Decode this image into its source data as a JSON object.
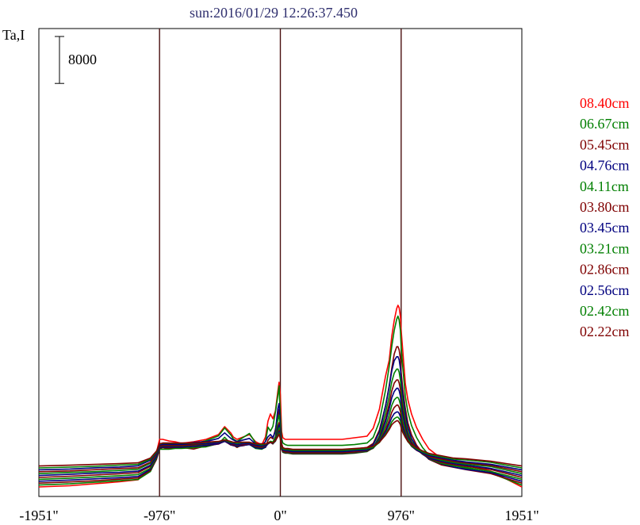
{
  "chart_data": {
    "type": "line",
    "title": "sun:2016/01/29 12:26:37.450",
    "ylabel": "Ta,I",
    "scale_bar_label": "8000",
    "scale_bar_value": 8000,
    "xlim": [
      -1951,
      1951
    ],
    "x_ticks": [
      {
        "value": -1951,
        "label": "-1951\""
      },
      {
        "value": -976,
        "label": "-976\""
      },
      {
        "value": 0,
        "label": "0\""
      },
      {
        "value": 976,
        "label": "976\""
      },
      {
        "value": 1951,
        "label": "1951\""
      }
    ],
    "vertical_lines": [
      -976,
      0,
      976
    ],
    "grid": false,
    "legend_position": "right",
    "x": [
      -1951,
      -1700,
      -1500,
      -1300,
      -1150,
      -1050,
      -1000,
      -976,
      -950,
      -900,
      -850,
      -800,
      -700,
      -600,
      -500,
      -450,
      -400,
      -380,
      -350,
      -300,
      -250,
      -200,
      -150,
      -120,
      -100,
      -80,
      -60,
      -40,
      -20,
      -10,
      0,
      10,
      20,
      40,
      60,
      100,
      200,
      300,
      400,
      500,
      600,
      700,
      750,
      800,
      850,
      880,
      900,
      920,
      940,
      950,
      960,
      970,
      976,
      990,
      1010,
      1030,
      1060,
      1100,
      1150,
      1200,
      1300,
      1400,
      1500,
      1700,
      1951
    ],
    "series": [
      {
        "name": "08.40cm",
        "color": "#ff0000",
        "baseline": 1200,
        "values": [
          0,
          150,
          400,
          650,
          900,
          2400,
          4400,
          6000,
          6000,
          5800,
          5700,
          5500,
          5700,
          6000,
          6600,
          7600,
          6800,
          6300,
          6000,
          6300,
          6600,
          5700,
          5300,
          6300,
          8300,
          9200,
          8600,
          9600,
          12100,
          13200,
          11600,
          7000,
          6200,
          6000,
          6000,
          6000,
          6000,
          6000,
          6000,
          6000,
          6200,
          6400,
          7400,
          9800,
          14000,
          16000,
          19000,
          21000,
          22500,
          22900,
          22600,
          21500,
          19800,
          17000,
          13000,
          11000,
          9200,
          7500,
          6000,
          4800,
          3600,
          3000,
          2700,
          2000,
          0
        ]
      },
      {
        "name": "06.67cm",
        "color": "#007f00",
        "baseline": 1440,
        "values": [
          0,
          150,
          350,
          550,
          700,
          1700,
          3300,
          5000,
          5100,
          5200,
          5200,
          5100,
          5200,
          5600,
          6200,
          7200,
          6300,
          5800,
          5500,
          6000,
          6500,
          5300,
          4900,
          5500,
          7300,
          6800,
          7400,
          9200,
          11300,
          12500,
          8800,
          5900,
          5300,
          5100,
          5000,
          5000,
          5000,
          5000,
          5000,
          5000,
          5100,
          5300,
          6000,
          8000,
          12000,
          15000,
          17500,
          19500,
          20900,
          21300,
          20800,
          19500,
          17500,
          14700,
          11200,
          9200,
          7500,
          6000,
          4700,
          3800,
          2900,
          2500,
          2100,
          1500,
          0
        ]
      },
      {
        "name": "05.45cm",
        "color": "#7f0000",
        "baseline": 1680,
        "values": [
          0,
          150,
          300,
          500,
          650,
          1600,
          3000,
          4300,
          4500,
          4300,
          4400,
          4500,
          4300,
          4700,
          5000,
          5300,
          4800,
          4800,
          4500,
          4900,
          5100,
          4500,
          4300,
          4500,
          5400,
          5800,
          5600,
          6800,
          8500,
          9300,
          7400,
          5000,
          4500,
          4300,
          4300,
          4200,
          4200,
          4200,
          4200,
          4200,
          4300,
          4500,
          5000,
          6700,
          9800,
          12300,
          14500,
          16300,
          17200,
          17200,
          16800,
          15700,
          14000,
          11800,
          9400,
          7600,
          6100,
          4800,
          3800,
          3000,
          2300,
          2000,
          1700,
          1200,
          0
        ]
      },
      {
        "name": "04.76cm",
        "color": "#00007f",
        "baseline": 1920,
        "values": [
          0,
          150,
          300,
          450,
          600,
          1500,
          2900,
          4200,
          4500,
          4500,
          4700,
          4700,
          4900,
          5000,
          5400,
          6100,
          5400,
          5200,
          5000,
          5200,
          5400,
          4700,
          4500,
          5000,
          5600,
          5900,
          5500,
          6300,
          9200,
          9800,
          7000,
          4400,
          4000,
          3900,
          3900,
          3800,
          3800,
          3800,
          3800,
          3800,
          3900,
          4100,
          4600,
          6200,
          9500,
          11900,
          13900,
          15200,
          15700,
          15700,
          15300,
          14200,
          12800,
          10800,
          8500,
          6800,
          5400,
          4300,
          3500,
          2800,
          2200,
          1800,
          1500,
          1100,
          0
        ]
      },
      {
        "name": "04.11cm",
        "color": "#007f00",
        "baseline": 2160,
        "values": [
          0,
          150,
          300,
          450,
          600,
          1400,
          2700,
          3800,
          3800,
          3800,
          3900,
          3900,
          4000,
          4100,
          4500,
          5300,
          4500,
          4300,
          4100,
          4300,
          4400,
          3900,
          3800,
          4100,
          4600,
          4800,
          4700,
          5400,
          7600,
          8100,
          6000,
          3800,
          3400,
          3300,
          3300,
          3200,
          3200,
          3200,
          3200,
          3200,
          3300,
          3500,
          4000,
          5500,
          8400,
          10500,
          12300,
          13400,
          13900,
          13900,
          13500,
          12500,
          11300,
          9500,
          7500,
          6000,
          4800,
          3900,
          3200,
          2600,
          2000,
          1700,
          1500,
          1000,
          0
        ]
      },
      {
        "name": "03.80cm",
        "color": "#7f0000",
        "baseline": 2400,
        "values": [
          0,
          150,
          300,
          450,
          600,
          1400,
          2600,
          3700,
          3800,
          3700,
          3800,
          3800,
          3900,
          4000,
          4200,
          4600,
          4100,
          4000,
          3900,
          4000,
          4200,
          3800,
          3700,
          3900,
          4300,
          4500,
          4300,
          4800,
          6400,
          6900,
          5500,
          3600,
          3200,
          3100,
          3100,
          3000,
          3000,
          3000,
          3000,
          3000,
          3100,
          3300,
          3700,
          5000,
          7400,
          9300,
          10900,
          11900,
          12300,
          12300,
          11900,
          11100,
          10000,
          8400,
          6700,
          5400,
          4400,
          3600,
          2900,
          2400,
          1900,
          1600,
          1400,
          1000,
          0
        ]
      },
      {
        "name": "03.45cm",
        "color": "#00007f",
        "baseline": 2640,
        "values": [
          0,
          150,
          300,
          400,
          550,
          1300,
          2400,
          3500,
          3600,
          3600,
          3600,
          3600,
          3700,
          3800,
          4000,
          4300,
          3900,
          3800,
          3700,
          3800,
          3900,
          3500,
          3400,
          3600,
          4000,
          4200,
          4000,
          4500,
          5900,
          6400,
          5100,
          3300,
          3000,
          2900,
          2900,
          2800,
          2800,
          2800,
          2800,
          2800,
          2900,
          3100,
          3500,
          4600,
          6800,
          8400,
          9800,
          10600,
          11000,
          11000,
          10700,
          10000,
          9000,
          7600,
          6100,
          4900,
          4000,
          3300,
          2700,
          2200,
          1800,
          1500,
          1300,
          900,
          0
        ]
      },
      {
        "name": "03.21cm",
        "color": "#007f00",
        "baseline": 2880,
        "values": [
          0,
          150,
          250,
          400,
          550,
          1300,
          2400,
          3400,
          3500,
          3500,
          3500,
          3500,
          3600,
          3700,
          3900,
          4200,
          3800,
          3700,
          3600,
          3700,
          3800,
          3400,
          3300,
          3500,
          3800,
          4000,
          3800,
          4200,
          5300,
          5800,
          4700,
          3100,
          2800,
          2700,
          2700,
          2600,
          2600,
          2600,
          2600,
          2600,
          2700,
          2900,
          3200,
          4200,
          6000,
          7400,
          8600,
          9300,
          9600,
          9600,
          9300,
          8700,
          7800,
          6600,
          5400,
          4400,
          3600,
          3000,
          2500,
          2100,
          1700,
          1400,
          1200,
          900,
          0
        ]
      },
      {
        "name": "02.86cm",
        "color": "#7f0000",
        "baseline": 3120,
        "values": [
          0,
          100,
          250,
          400,
          500,
          1200,
          2200,
          3200,
          3300,
          3300,
          3300,
          3300,
          3400,
          3500,
          3600,
          3900,
          3500,
          3400,
          3400,
          3400,
          3500,
          3200,
          3100,
          3300,
          3500,
          3700,
          3500,
          3900,
          4800,
          5200,
          4300,
          2900,
          2600,
          2500,
          2500,
          2400,
          2400,
          2400,
          2400,
          2400,
          2500,
          2700,
          3000,
          3800,
          5300,
          6500,
          7500,
          8100,
          8400,
          8400,
          8100,
          7600,
          6800,
          5800,
          4800,
          3900,
          3200,
          2700,
          2300,
          1900,
          1600,
          1300,
          1100,
          800,
          0
        ]
      },
      {
        "name": "02.56cm",
        "color": "#00007f",
        "baseline": 3360,
        "values": [
          0,
          100,
          250,
          350,
          500,
          1200,
          2100,
          3100,
          3200,
          3200,
          3200,
          3200,
          3300,
          3300,
          3400,
          3700,
          3300,
          3300,
          3200,
          3300,
          3300,
          3100,
          3000,
          3100,
          3300,
          3500,
          3300,
          3600,
          4400,
          4800,
          4000,
          2800,
          2500,
          2400,
          2400,
          2300,
          2300,
          2300,
          2300,
          2300,
          2400,
          2500,
          2800,
          3500,
          4800,
          5800,
          6600,
          7100,
          7300,
          7300,
          7100,
          6700,
          6000,
          5200,
          4300,
          3600,
          3000,
          2500,
          2100,
          1800,
          1500,
          1200,
          1000,
          700,
          0
        ]
      },
      {
        "name": "02.42cm",
        "color": "#007f00",
        "baseline": 3600,
        "values": [
          0,
          100,
          200,
          350,
          450,
          1100,
          2000,
          3000,
          3100,
          3100,
          3100,
          3100,
          3100,
          3200,
          3300,
          3500,
          3200,
          3200,
          3100,
          3200,
          3200,
          3000,
          2900,
          3000,
          3100,
          3300,
          3100,
          3400,
          4100,
          4400,
          3700,
          2600,
          2400,
          2300,
          2300,
          2200,
          2200,
          2200,
          2200,
          2200,
          2300,
          2400,
          2600,
          3200,
          4300,
          5100,
          5800,
          6200,
          6400,
          6400,
          6200,
          5900,
          5300,
          4600,
          3900,
          3300,
          2800,
          2400,
          2000,
          1700,
          1400,
          1100,
          1000,
          700,
          0
        ]
      },
      {
        "name": "02.22cm",
        "color": "#7f0000",
        "baseline": 3840,
        "values": [
          0,
          100,
          200,
          300,
          400,
          1000,
          1900,
          2800,
          2900,
          2900,
          2900,
          2900,
          2900,
          3000,
          3100,
          3300,
          3100,
          3000,
          3000,
          3000,
          3000,
          2800,
          2800,
          2800,
          2900,
          3000,
          2900,
          3200,
          3700,
          4000,
          3400,
          2500,
          2300,
          2200,
          2200,
          2100,
          2100,
          2100,
          2100,
          2100,
          2200,
          2300,
          2500,
          3000,
          3900,
          4600,
          5200,
          5500,
          5700,
          5700,
          5500,
          5200,
          4800,
          4200,
          3600,
          3100,
          2700,
          2300,
          1900,
          1600,
          1300,
          1000,
          900,
          600,
          0
        ]
      }
    ]
  }
}
